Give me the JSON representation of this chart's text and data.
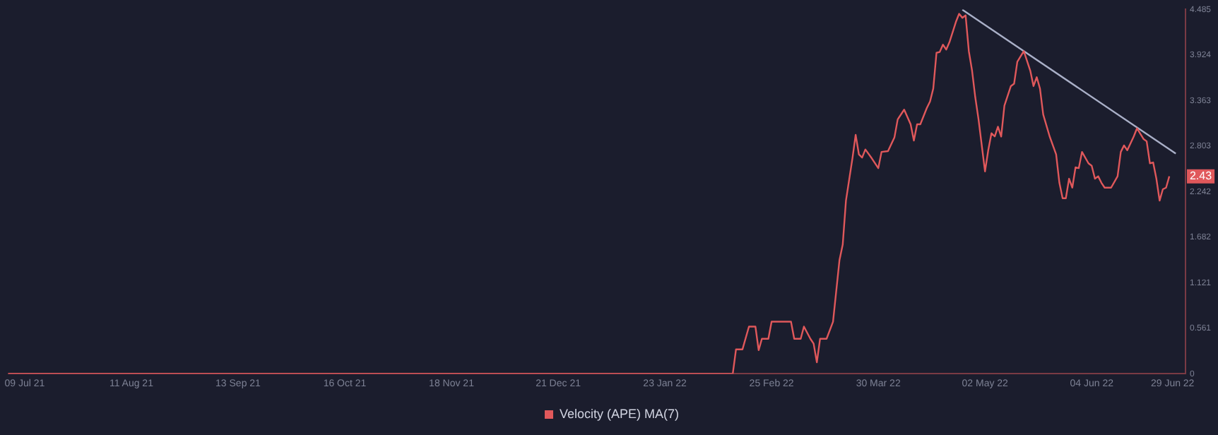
{
  "chart_data": {
    "type": "line",
    "legend": "bottom",
    "grid": false,
    "marker": "none",
    "line_style": "solid",
    "xlim": [
      "2021-07-04",
      "2022-07-03"
    ],
    "xticks": [
      {
        "value": "2021-07-09",
        "label": "09 Jul 21"
      },
      {
        "value": "2021-08-11",
        "label": "11 Aug 21"
      },
      {
        "value": "2021-09-13",
        "label": "13 Sep 21"
      },
      {
        "value": "2021-10-16",
        "label": "16 Oct 21"
      },
      {
        "value": "2021-11-18",
        "label": "18 Nov 21"
      },
      {
        "value": "2021-12-21",
        "label": "21 Dec 21"
      },
      {
        "value": "2022-01-23",
        "label": "23 Jan 22"
      },
      {
        "value": "2022-02-25",
        "label": "25 Feb 22"
      },
      {
        "value": "2022-03-30",
        "label": "30 Mar 22"
      },
      {
        "value": "2022-05-02",
        "label": "02 May 22"
      },
      {
        "value": "2022-06-04",
        "label": "04 Jun 22"
      },
      {
        "value": "2022-06-29",
        "label": "29 Jun 22"
      }
    ],
    "ylim": [
      0,
      4.485
    ],
    "yticks": [
      0,
      0.561,
      1.121,
      1.682,
      2.242,
      2.803,
      3.363,
      3.924,
      4.485
    ],
    "annotations": [
      "2.43"
    ],
    "series": [
      {
        "name": "Velocity (APE) MA(7)",
        "color": "#e0585b",
        "x": [
          "2021-07-04",
          "2022-02-03",
          "2022-02-13",
          "2022-02-14",
          "2022-02-16",
          "2022-02-18",
          "2022-02-20",
          "2022-02-21",
          "2022-02-22",
          "2022-02-24",
          "2022-02-25",
          "2022-03-03",
          "2022-03-04",
          "2022-03-06",
          "2022-03-07",
          "2022-03-09",
          "2022-03-10",
          "2022-03-11",
          "2022-03-12",
          "2022-03-14",
          "2022-03-16",
          "2022-03-17",
          "2022-03-18",
          "2022-03-19",
          "2022-03-20",
          "2022-03-22",
          "2022-03-23",
          "2022-03-24",
          "2022-03-25",
          "2022-03-26",
          "2022-03-28",
          "2022-03-30",
          "2022-03-31",
          "2022-04-02",
          "2022-04-04",
          "2022-04-05",
          "2022-04-07",
          "2022-04-09",
          "2022-04-10",
          "2022-04-11",
          "2022-04-12",
          "2022-04-14",
          "2022-04-15",
          "2022-04-16",
          "2022-04-17",
          "2022-04-18",
          "2022-04-19",
          "2022-04-20",
          "2022-04-21",
          "2022-04-23",
          "2022-04-24",
          "2022-04-25",
          "2022-04-26",
          "2022-04-27",
          "2022-04-28",
          "2022-04-29",
          "2022-04-30",
          "2022-05-02",
          "2022-05-03",
          "2022-05-04",
          "2022-05-05",
          "2022-05-06",
          "2022-05-07",
          "2022-05-08",
          "2022-05-10",
          "2022-05-11",
          "2022-05-12",
          "2022-05-14",
          "2022-05-16",
          "2022-05-17",
          "2022-05-18",
          "2022-05-19",
          "2022-05-20",
          "2022-05-22",
          "2022-05-24",
          "2022-05-25",
          "2022-05-26",
          "2022-05-27",
          "2022-05-28",
          "2022-05-29",
          "2022-05-30",
          "2022-05-31",
          "2022-06-01",
          "2022-06-03",
          "2022-06-04",
          "2022-06-05",
          "2022-06-06",
          "2022-06-07",
          "2022-06-08",
          "2022-06-10",
          "2022-06-12",
          "2022-06-13",
          "2022-06-14",
          "2022-06-15",
          "2022-06-17",
          "2022-06-18",
          "2022-06-20",
          "2022-06-21",
          "2022-06-22",
          "2022-06-23",
          "2022-06-24",
          "2022-06-25",
          "2022-06-26",
          "2022-06-27",
          "2022-06-28"
        ],
        "values": [
          0,
          0,
          0,
          0.3,
          0.3,
          0.58,
          0.58,
          0.29,
          0.43,
          0.43,
          0.64,
          0.64,
          0.43,
          0.43,
          0.58,
          0.43,
          0.37,
          0.14,
          0.43,
          0.43,
          0.64,
          1.02,
          1.4,
          1.59,
          2.13,
          2.65,
          2.94,
          2.7,
          2.66,
          2.76,
          2.65,
          2.53,
          2.73,
          2.74,
          2.91,
          3.13,
          3.25,
          3.07,
          2.87,
          3.07,
          3.07,
          3.27,
          3.35,
          3.51,
          3.95,
          3.96,
          4.05,
          3.99,
          4.08,
          4.33,
          4.43,
          4.38,
          4.41,
          3.97,
          3.73,
          3.4,
          3.13,
          2.49,
          2.75,
          2.96,
          2.92,
          3.04,
          2.92,
          3.3,
          3.54,
          3.57,
          3.84,
          3.97,
          3.73,
          3.54,
          3.65,
          3.51,
          3.19,
          2.92,
          2.7,
          2.35,
          2.16,
          2.16,
          2.4,
          2.29,
          2.54,
          2.53,
          2.73,
          2.59,
          2.56,
          2.4,
          2.43,
          2.35,
          2.29,
          2.29,
          2.43,
          2.73,
          2.81,
          2.75,
          2.92,
          3.02,
          2.89,
          2.86,
          2.59,
          2.6,
          2.4,
          2.13,
          2.27,
          2.29,
          2.43
        ]
      },
      {
        "type": "line",
        "color": "#aab0c8",
        "x": [
          "2022-04-25",
          "2022-06-30"
        ],
        "values": [
          4.48,
          2.71
        ]
      }
    ]
  }
}
